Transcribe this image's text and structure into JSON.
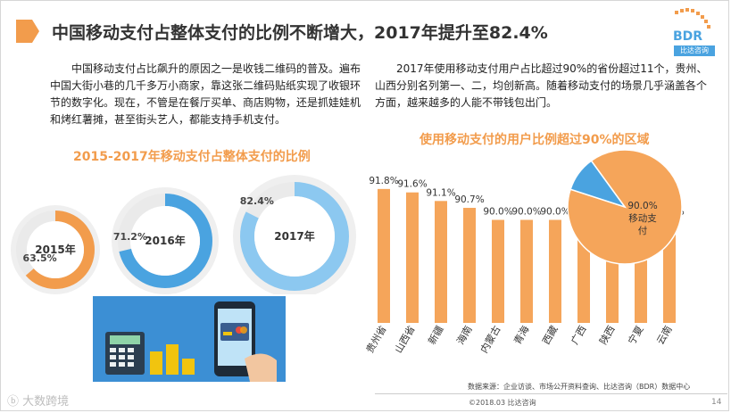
{
  "header": {
    "title": "中国移动支付占整体支付的比例不断增大，2017年提升至82.4%"
  },
  "logo": {
    "main": "BDR",
    "sub": "比达咨询"
  },
  "left": {
    "paragraph": "中国移动支付占比飙升的原因之一是收钱二维码的普及。遍布中国大街小巷的几千多万小商家，靠这张二维码贴纸实现了收银环节的数字化。现在，不管是在餐厅买单、商店购物，还是抓娃娃机和烤红薯摊，甚至街头艺人，都能支持手机支付。",
    "subtitle": "2015-2017年移动支付占整体支付的比例"
  },
  "right": {
    "paragraph": "2017年使用移动支付用户占比超过90%的省份超过11个，贵州、山西分别名列第一、二，均创新高。随着移动支付的场景几乎涵盖各个方面，越来越多的人能不带钱包出门。",
    "subtitle": "使用移动支付的用户比例超过90%的区域"
  },
  "chart_data": [
    {
      "type": "donut",
      "items": [
        {
          "label": "2015年",
          "value": 63.5,
          "value_label": "63.5%"
        },
        {
          "label": "2016年",
          "value": 71.2,
          "value_label": "71.2%"
        },
        {
          "label": "2017年",
          "value": 82.4,
          "value_label": "82.4%"
        }
      ],
      "colors": {
        "2015年": "#f29c4c",
        "2016年": "#4aa3e0",
        "2017年": "#8cc8f0",
        "track": "#eaeaea"
      }
    },
    {
      "type": "bar",
      "categories": [
        "贵州省",
        "山西省",
        "新疆",
        "海南",
        "内蒙古",
        "青海",
        "西藏",
        "广西",
        "陕西",
        "宁夏",
        "云南"
      ],
      "values": [
        91.8,
        91.6,
        91.1,
        90.7,
        90.0,
        90.0,
        90.0,
        90.0,
        90.0,
        90.0,
        90.0
      ],
      "value_labels": [
        "91.8%",
        "91.6%",
        "91.1%",
        "90.7%",
        "90.0%",
        "90.0%",
        "90.0%",
        "90.0%",
        "90.0%",
        "90.0%",
        "90.0%"
      ],
      "color": "#f5a55a"
    },
    {
      "type": "pie",
      "slices": [
        {
          "value": 90.0,
          "label": "90.0%",
          "sublabel": "移动支付",
          "color": "#f5a55a"
        },
        {
          "value": 10.0,
          "label": "",
          "color": "#4aa3e0"
        }
      ]
    }
  ],
  "footer": {
    "source": "数据来源：企业访谈、市场公开资料查询、比达咨询（BDR）数据中心",
    "copyright": "©2018.03 比达咨询",
    "page": "14",
    "watermark": "大数跨境"
  }
}
